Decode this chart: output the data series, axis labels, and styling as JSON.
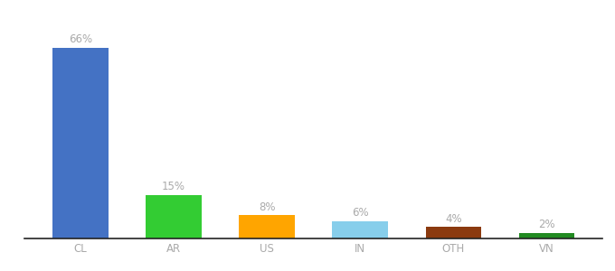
{
  "categories": [
    "CL",
    "AR",
    "US",
    "IN",
    "OTH",
    "VN"
  ],
  "values": [
    66,
    15,
    8,
    6,
    4,
    2
  ],
  "labels": [
    "66%",
    "15%",
    "8%",
    "6%",
    "4%",
    "2%"
  ],
  "bar_colors": [
    "#4472C4",
    "#33CC33",
    "#FFA500",
    "#87CEEB",
    "#8B3A0F",
    "#228B22"
  ],
  "background_color": "#ffffff",
  "label_color": "#aaaaaa",
  "tick_color": "#aaaaaa",
  "bar_width": 0.6,
  "ylim": [
    0,
    75
  ],
  "label_fontsize": 8.5,
  "tick_fontsize": 8.5,
  "bottom_spine_color": "#222222"
}
